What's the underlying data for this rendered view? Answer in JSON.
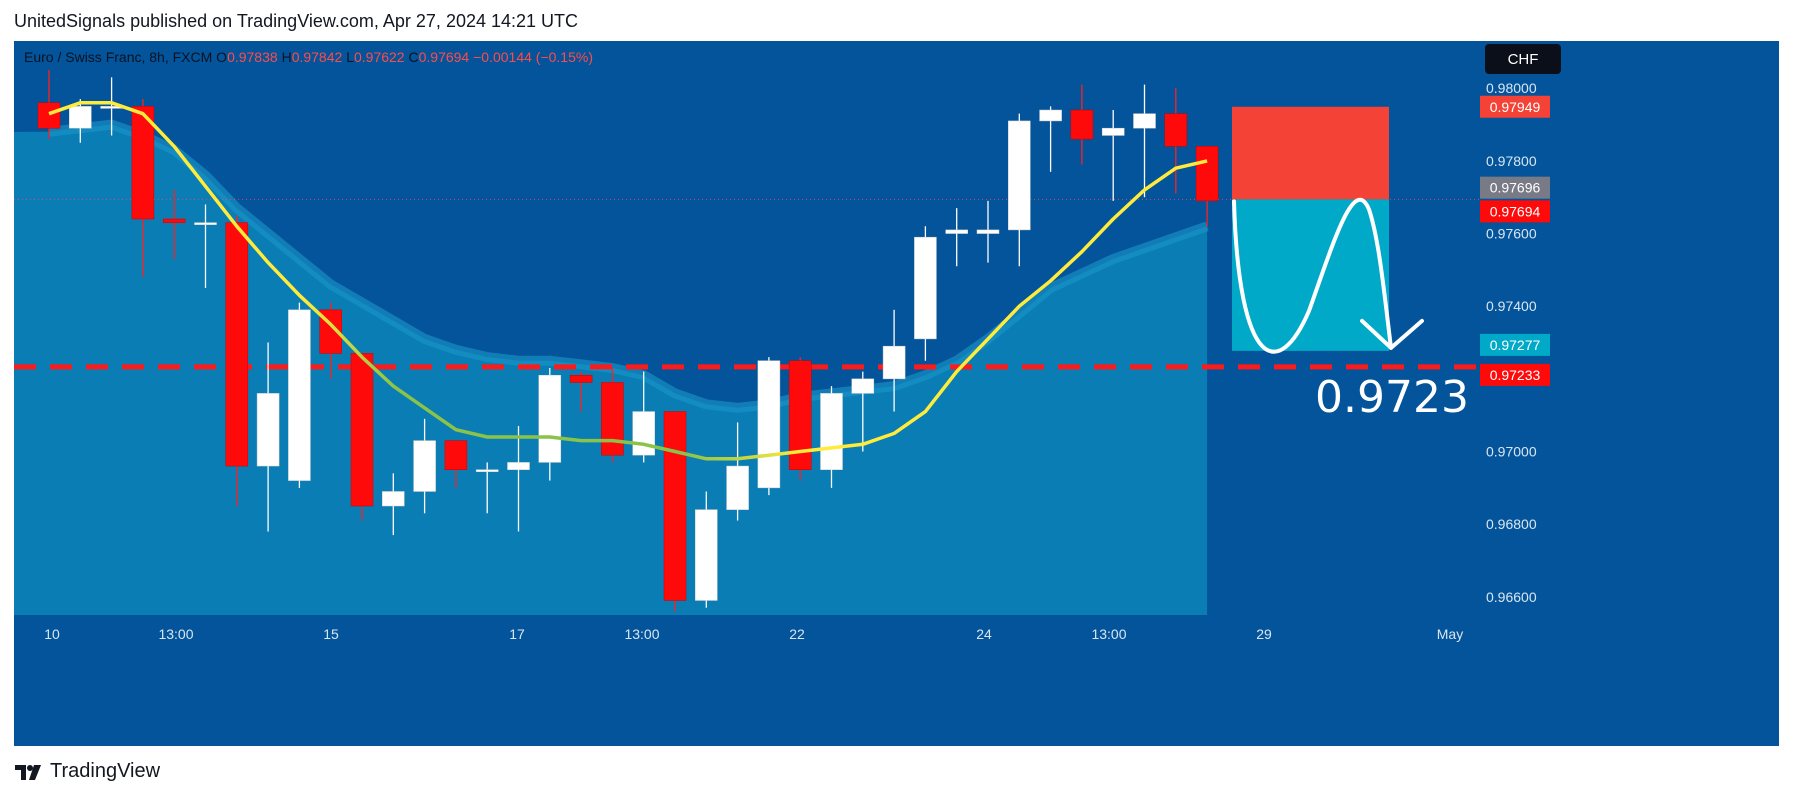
{
  "header": {
    "publisher_line": "UnitedSignals published on TradingView.com, Apr 27, 2024 14:21 UTC"
  },
  "footer": {
    "brand": "TradingView",
    "logo_icon": "tradingview-logo-icon"
  },
  "colors": {
    "background": "#03549a",
    "bull_candle": "#ffffff",
    "bear_candle": "#ff0a0a",
    "fast_ma": "#ffeb3b",
    "slow_ma": "#8bc34a",
    "cloud": "#0a85b8",
    "stop_zone": "#f44336",
    "target_zone": "#00a9c8",
    "target_line": "#ff1010",
    "scale_text": "#d9e6f2"
  },
  "chart_data": {
    "type": "candlestick",
    "symbol_line": {
      "name": "Euro / Swiss Franc, 8h, FXCM",
      "o_label": "O",
      "o_value": "0.97838",
      "h_label": "H",
      "h_value": "0.97842",
      "l_label": "L",
      "l_value": "0.97622",
      "c_label": "C",
      "c_value": "0.97694",
      "change": "−0.00144 (−0.15%)"
    },
    "currency_button": "CHF",
    "y_ticks": [
      "0.98000",
      "0.97800",
      "0.97600",
      "0.97400",
      "0.97200",
      "0.97000",
      "0.96800",
      "0.96600"
    ],
    "ylim": [
      0.9655,
      0.9813
    ],
    "x_ticks": [
      "10",
      "13:00",
      "15",
      "17",
      "13:00",
      "22",
      "24",
      "13:00",
      "29",
      "May"
    ],
    "price_badges": [
      {
        "label": "0.97949",
        "value": 0.97949,
        "color": "#f44336"
      },
      {
        "label": "0.97696",
        "value": 0.97696,
        "color": "#787b86"
      },
      {
        "label": "0.97694",
        "value": 0.97694,
        "color": "#ff0a0a"
      },
      {
        "label": "0.97277",
        "value": 0.97277,
        "color": "#00a9c8"
      },
      {
        "label": "0.97233",
        "value": 0.97233,
        "color": "#ff0a0a"
      }
    ],
    "target_level": 0.97233,
    "target_text": "0.9723",
    "position": {
      "entry": 0.97694,
      "stop": 0.97949,
      "target": 0.97277
    },
    "candles": [
      {
        "o": 0.9796,
        "h": 0.9805,
        "l": 0.9786,
        "c": 0.9789
      },
      {
        "o": 0.9789,
        "h": 0.9797,
        "l": 0.9785,
        "c": 0.9795
      },
      {
        "o": 0.9795,
        "h": 0.9803,
        "l": 0.9787,
        "c": 0.9795
      },
      {
        "o": 0.9795,
        "h": 0.9797,
        "l": 0.9748,
        "c": 0.9764
      },
      {
        "o": 0.9764,
        "h": 0.9772,
        "l": 0.9753,
        "c": 0.9763
      },
      {
        "o": 0.9763,
        "h": 0.9768,
        "l": 0.9745,
        "c": 0.9763
      },
      {
        "o": 0.9763,
        "h": 0.9765,
        "l": 0.9685,
        "c": 0.9696
      },
      {
        "o": 0.9696,
        "h": 0.973,
        "l": 0.9678,
        "c": 0.9716
      },
      {
        "o": 0.9692,
        "h": 0.9741,
        "l": 0.969,
        "c": 0.9739
      },
      {
        "o": 0.9739,
        "h": 0.9741,
        "l": 0.972,
        "c": 0.9727
      },
      {
        "o": 0.9727,
        "h": 0.9727,
        "l": 0.9681,
        "c": 0.9685
      },
      {
        "o": 0.9685,
        "h": 0.9694,
        "l": 0.9677,
        "c": 0.9689
      },
      {
        "o": 0.9689,
        "h": 0.9709,
        "l": 0.9683,
        "c": 0.9703
      },
      {
        "o": 0.9703,
        "h": 0.9703,
        "l": 0.969,
        "c": 0.9695
      },
      {
        "o": 0.9695,
        "h": 0.9697,
        "l": 0.9683,
        "c": 0.9695
      },
      {
        "o": 0.9695,
        "h": 0.9707,
        "l": 0.9678,
        "c": 0.9697
      },
      {
        "o": 0.9697,
        "h": 0.9723,
        "l": 0.9692,
        "c": 0.9721
      },
      {
        "o": 0.9721,
        "h": 0.9722,
        "l": 0.9711,
        "c": 0.9719
      },
      {
        "o": 0.9719,
        "h": 0.9723,
        "l": 0.9697,
        "c": 0.9699
      },
      {
        "o": 0.9699,
        "h": 0.9722,
        "l": 0.9697,
        "c": 0.9711
      },
      {
        "o": 0.9711,
        "h": 0.9711,
        "l": 0.9656,
        "c": 0.9659
      },
      {
        "o": 0.9659,
        "h": 0.9689,
        "l": 0.9657,
        "c": 0.9684
      },
      {
        "o": 0.9684,
        "h": 0.9708,
        "l": 0.9681,
        "c": 0.9696
      },
      {
        "o": 0.969,
        "h": 0.9726,
        "l": 0.9688,
        "c": 0.9725
      },
      {
        "o": 0.9725,
        "h": 0.9726,
        "l": 0.9692,
        "c": 0.9695
      },
      {
        "o": 0.9695,
        "h": 0.9718,
        "l": 0.969,
        "c": 0.9716
      },
      {
        "o": 0.9716,
        "h": 0.9722,
        "l": 0.97,
        "c": 0.972
      },
      {
        "o": 0.972,
        "h": 0.9739,
        "l": 0.9711,
        "c": 0.9729
      },
      {
        "o": 0.9731,
        "h": 0.9762,
        "l": 0.9725,
        "c": 0.9759
      },
      {
        "o": 0.976,
        "h": 0.9767,
        "l": 0.9751,
        "c": 0.9761
      },
      {
        "o": 0.976,
        "h": 0.9769,
        "l": 0.9752,
        "c": 0.9761
      },
      {
        "o": 0.9761,
        "h": 0.9793,
        "l": 0.9751,
        "c": 0.9791
      },
      {
        "o": 0.9791,
        "h": 0.9795,
        "l": 0.9777,
        "c": 0.9794
      },
      {
        "o": 0.9794,
        "h": 0.9801,
        "l": 0.9779,
        "c": 0.9786
      },
      {
        "o": 0.9787,
        "h": 0.9794,
        "l": 0.9769,
        "c": 0.9789
      },
      {
        "o": 0.9789,
        "h": 0.9801,
        "l": 0.977,
        "c": 0.9793
      },
      {
        "o": 0.9793,
        "h": 0.98,
        "l": 0.9771,
        "c": 0.9784
      },
      {
        "o": 0.9784,
        "h": 0.9784,
        "l": 0.9762,
        "c": 0.9769
      }
    ],
    "series": [
      {
        "kind": "moving_average",
        "color": "#ffeb3b",
        "values": [
          0.9793,
          0.9796,
          0.9796,
          0.9793,
          0.9784,
          0.9773,
          0.9762,
          0.9752,
          0.9743,
          0.9735,
          0.9726,
          0.9718,
          0.9712,
          0.9706,
          0.9704,
          0.9704,
          0.9704,
          0.9703,
          0.9703,
          0.9702,
          0.97,
          0.9698,
          0.9698,
          0.9699,
          0.97,
          0.9701,
          0.9702,
          0.9705,
          0.9711,
          0.9722,
          0.9731,
          0.974,
          0.9747,
          0.9755,
          0.9764,
          0.9772,
          0.9778,
          0.978
        ]
      },
      {
        "kind": "moving_average",
        "color": "#8bc34a",
        "values": [
          0.9788,
          0.9789,
          0.979,
          0.9787,
          0.9783,
          0.9776,
          0.9767,
          0.976,
          0.9753,
          0.9746,
          0.9741,
          0.9736,
          0.9731,
          0.9728,
          0.9726,
          0.9725,
          0.9725,
          0.9724,
          0.9723,
          0.9721,
          0.9716,
          0.9713,
          0.9712,
          0.9713,
          0.9715,
          0.9716,
          0.9717,
          0.9718,
          0.9721,
          0.9725,
          0.9731,
          0.9738,
          0.9745,
          0.9749,
          0.9753,
          0.9756,
          0.9759,
          0.9762
        ]
      }
    ]
  }
}
